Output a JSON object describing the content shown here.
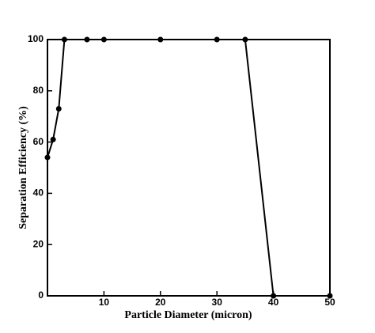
{
  "chart_data": {
    "type": "line",
    "x_label": "Particle Diameter (micron)",
    "y_label": "Separation Efficiency (%)",
    "x": [
      0,
      1,
      2,
      3,
      7,
      10,
      20,
      30,
      35,
      40,
      50
    ],
    "series": [
      {
        "color": "#000000",
        "values": [
          54,
          61,
          73,
          100,
          100,
          100,
          100,
          100,
          100,
          0,
          0
        ]
      }
    ],
    "xlim": [
      0,
      50
    ],
    "xticks": [
      10,
      20,
      30,
      40,
      50
    ],
    "ylim": [
      0,
      100
    ],
    "yticks": [
      0,
      20,
      40,
      60,
      80,
      100
    ],
    "grid": false
  }
}
